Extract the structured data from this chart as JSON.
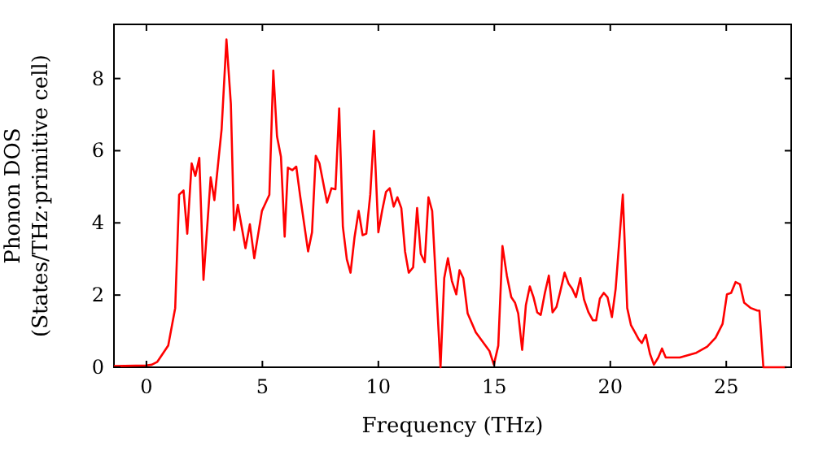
{
  "chart_data": {
    "type": "line",
    "xlabel": "Frequency (THz)",
    "ylabel": "Phonon DOS\n(States/THz·primitive cell)",
    "xlim": [
      -1.4,
      27.8
    ],
    "ylim": [
      0,
      9.5
    ],
    "xticks": [
      0,
      5,
      10,
      15,
      20,
      25
    ],
    "yticks": [
      0,
      2,
      4,
      6,
      8
    ],
    "grid": false,
    "marker": "none",
    "line_style": "solid",
    "series": [
      {
        "color": "#ff0000",
        "x": [
          -1.4,
          0,
          0.23,
          0.47,
          0.7,
          0.94,
          1.24,
          1.41,
          1.6,
          1.76,
          1.95,
          2.11,
          2.28,
          2.46,
          2.77,
          2.93,
          3.24,
          3.45,
          3.64,
          3.78,
          3.94,
          4.27,
          4.46,
          4.65,
          4.98,
          5.3,
          5.47,
          5.63,
          5.8,
          5.96,
          6.1,
          6.29,
          6.46,
          6.62,
          6.97,
          7.14,
          7.3,
          7.46,
          7.79,
          7.98,
          8.15,
          8.31,
          8.47,
          8.64,
          8.8,
          8.97,
          9.15,
          9.32,
          9.48,
          9.65,
          9.81,
          10.0,
          10.16,
          10.33,
          10.49,
          10.66,
          10.82,
          10.99,
          11.15,
          11.31,
          11.5,
          11.67,
          11.83,
          12.0,
          12.16,
          12.32,
          12.68,
          12.84,
          13.0,
          13.17,
          13.36,
          13.5,
          13.66,
          13.85,
          14.2,
          14.79,
          14.98,
          15.17,
          15.35,
          15.54,
          15.73,
          15.89,
          16.03,
          16.2,
          16.36,
          16.53,
          16.69,
          16.85,
          17.0,
          17.18,
          17.35,
          17.51,
          17.68,
          17.84,
          18.03,
          18.2,
          18.36,
          18.52,
          18.71,
          18.87,
          19.06,
          19.25,
          19.39,
          19.55,
          19.72,
          19.88,
          20.07,
          20.23,
          20.54,
          20.73,
          20.89,
          21.06,
          21.22,
          21.36,
          21.53,
          21.71,
          21.88,
          22.07,
          22.23,
          22.39,
          23.0,
          23.71,
          24.18,
          24.54,
          24.84,
          25.03,
          25.21,
          25.4,
          25.59,
          25.77,
          26.06,
          26.34,
          26.43,
          26.6,
          27.6
        ],
        "values": [
          0.03,
          0.05,
          0.07,
          0.15,
          0.37,
          0.6,
          1.64,
          4.78,
          4.9,
          3.7,
          5.65,
          5.3,
          5.8,
          2.42,
          5.26,
          4.63,
          6.58,
          9.08,
          7.3,
          3.8,
          4.5,
          3.3,
          3.96,
          3.02,
          4.33,
          4.78,
          8.22,
          6.4,
          5.83,
          3.62,
          5.53,
          5.46,
          5.56,
          4.78,
          3.21,
          3.74,
          5.86,
          5.65,
          4.56,
          4.96,
          4.93,
          7.17,
          3.89,
          2.99,
          2.62,
          3.59,
          4.33,
          3.66,
          3.7,
          4.78,
          6.55,
          3.74,
          4.33,
          4.86,
          4.96,
          4.45,
          4.71,
          4.41,
          3.21,
          2.62,
          2.77,
          4.41,
          3.14,
          2.91,
          4.71,
          4.33,
          0.0,
          2.47,
          3.02,
          2.39,
          2.02,
          2.69,
          2.47,
          1.49,
          0.97,
          0.45,
          0.07,
          0.6,
          3.36,
          2.54,
          1.94,
          1.79,
          1.49,
          0.48,
          1.72,
          2.24,
          1.94,
          1.52,
          1.45,
          2.06,
          2.54,
          1.52,
          1.67,
          2.09,
          2.62,
          2.32,
          2.17,
          1.94,
          2.47,
          1.87,
          1.52,
          1.3,
          1.3,
          1.9,
          2.06,
          1.94,
          1.39,
          2.17,
          4.78,
          1.64,
          1.17,
          0.97,
          0.78,
          0.67,
          0.9,
          0.37,
          0.07,
          0.27,
          0.52,
          0.27,
          0.27,
          0.4,
          0.57,
          0.82,
          1.2,
          2.02,
          2.06,
          2.36,
          2.3,
          1.79,
          1.64,
          1.57,
          1.57,
          0.0,
          0.0
        ]
      }
    ]
  }
}
